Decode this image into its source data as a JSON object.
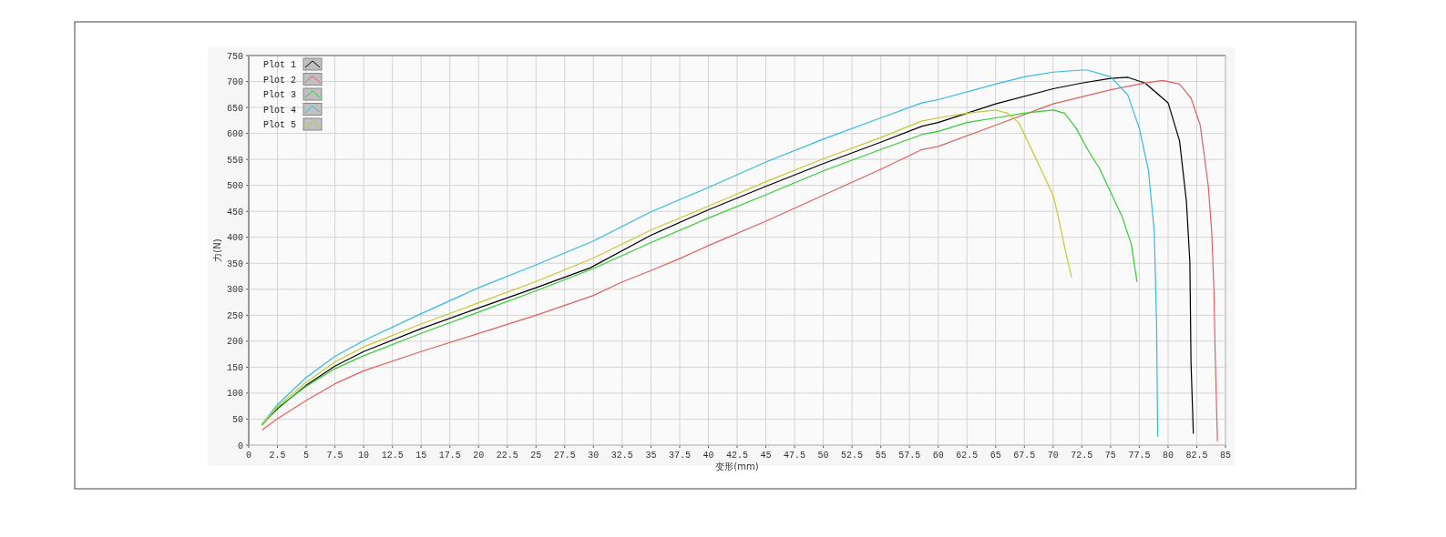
{
  "chart_data": {
    "type": "line",
    "xlabel": "变形(mm)",
    "ylabel": "力(N)",
    "xlim": [
      0,
      85
    ],
    "ylim": [
      0,
      750
    ],
    "xticks": [
      0,
      2.5,
      5,
      7.5,
      10,
      12.5,
      15,
      17.5,
      20,
      22.5,
      25,
      27.5,
      30,
      32.5,
      35,
      37.5,
      40,
      42.5,
      45,
      47.5,
      50,
      52.5,
      55,
      57.5,
      60,
      62.5,
      65,
      67.5,
      70,
      72.5,
      75,
      77.5,
      80,
      82.5,
      85
    ],
    "yticks": [
      0,
      50,
      100,
      150,
      200,
      250,
      300,
      350,
      400,
      450,
      500,
      550,
      600,
      650,
      700,
      750
    ],
    "grid": true,
    "legend": "top left",
    "marker": "none",
    "line_style": "solid",
    "series": [
      {
        "name": "Plot 1",
        "color": "#000000",
        "x": [
          1.15,
          2.5,
          5,
          7.5,
          10,
          15,
          20,
          25,
          29.7,
          35,
          40,
          45,
          50,
          55,
          58.6,
          60,
          65,
          70,
          72.5,
          75,
          76.5,
          78,
          80,
          81,
          81.6,
          81.9,
          82,
          82.2
        ],
        "values": [
          40,
          70,
          115,
          152,
          180,
          224,
          264,
          303,
          341,
          404,
          453,
          498,
          542,
          583,
          614,
          621,
          657,
          686,
          697,
          706,
          708,
          697,
          659,
          586,
          469,
          352,
          159,
          22
        ]
      },
      {
        "name": "Plot 2",
        "color": "#e06060",
        "x": [
          1.15,
          2.5,
          5,
          7.5,
          10,
          15,
          20,
          25,
          30,
          32.5,
          35,
          37.5,
          40,
          45,
          50,
          55,
          58.6,
          60,
          65,
          70,
          75,
          77.5,
          79.5,
          81,
          82,
          82.8,
          83.5,
          83.8,
          84,
          84.1,
          84.3
        ],
        "values": [
          29,
          51,
          86,
          118,
          143,
          180,
          215,
          250,
          288,
          314,
          336,
          359,
          384,
          431,
          481,
          531,
          569,
          575,
          616,
          657,
          684,
          695,
          702,
          695,
          668,
          616,
          499,
          411,
          294,
          177,
          7
        ]
      },
      {
        "name": "Plot 3",
        "color": "#33cc33",
        "x": [
          1.15,
          2.5,
          5,
          7.5,
          10,
          15,
          20,
          25,
          30,
          35,
          40,
          45,
          50,
          55,
          58.6,
          60,
          62.5,
          65,
          67.5,
          70,
          71,
          72,
          73,
          74,
          75,
          76,
          76.8,
          77.3
        ],
        "values": [
          38,
          72,
          113,
          147,
          172,
          215,
          256,
          297,
          340,
          390,
          437,
          482,
          528,
          569,
          598,
          604,
          621,
          630,
          639,
          645,
          639,
          610,
          569,
          534,
          487,
          440,
          387,
          314
        ]
      },
      {
        "name": "Plot 4",
        "color": "#33bbdd",
        "x": [
          1.15,
          2.5,
          5,
          7.5,
          10,
          15,
          20,
          25,
          30,
          35,
          40,
          45,
          50,
          55,
          58.6,
          60,
          65,
          67.5,
          70,
          72.5,
          73,
          75,
          76.5,
          77.5,
          78.3,
          78.8,
          79,
          79.1
        ],
        "values": [
          40,
          78,
          130,
          171,
          201,
          253,
          303,
          347,
          393,
          449,
          496,
          545,
          589,
          630,
          659,
          665,
          695,
          709,
          718,
          722,
          722,
          709,
          674,
          610,
          528,
          411,
          235,
          16
        ]
      },
      {
        "name": "Plot 5",
        "color": "#c8c832",
        "x": [
          1.15,
          2.5,
          5,
          7.5,
          10,
          15,
          20,
          25,
          30,
          35,
          40,
          45,
          50,
          55,
          58.6,
          60,
          62.5,
          65,
          66,
          67,
          68,
          69,
          70,
          70.5,
          71,
          71.6
        ],
        "values": [
          40,
          74,
          121,
          160,
          189,
          233,
          274,
          315,
          360,
          414,
          460,
          507,
          551,
          592,
          624,
          630,
          639,
          645,
          639,
          621,
          575,
          528,
          481,
          434,
          381,
          323
        ]
      }
    ]
  }
}
